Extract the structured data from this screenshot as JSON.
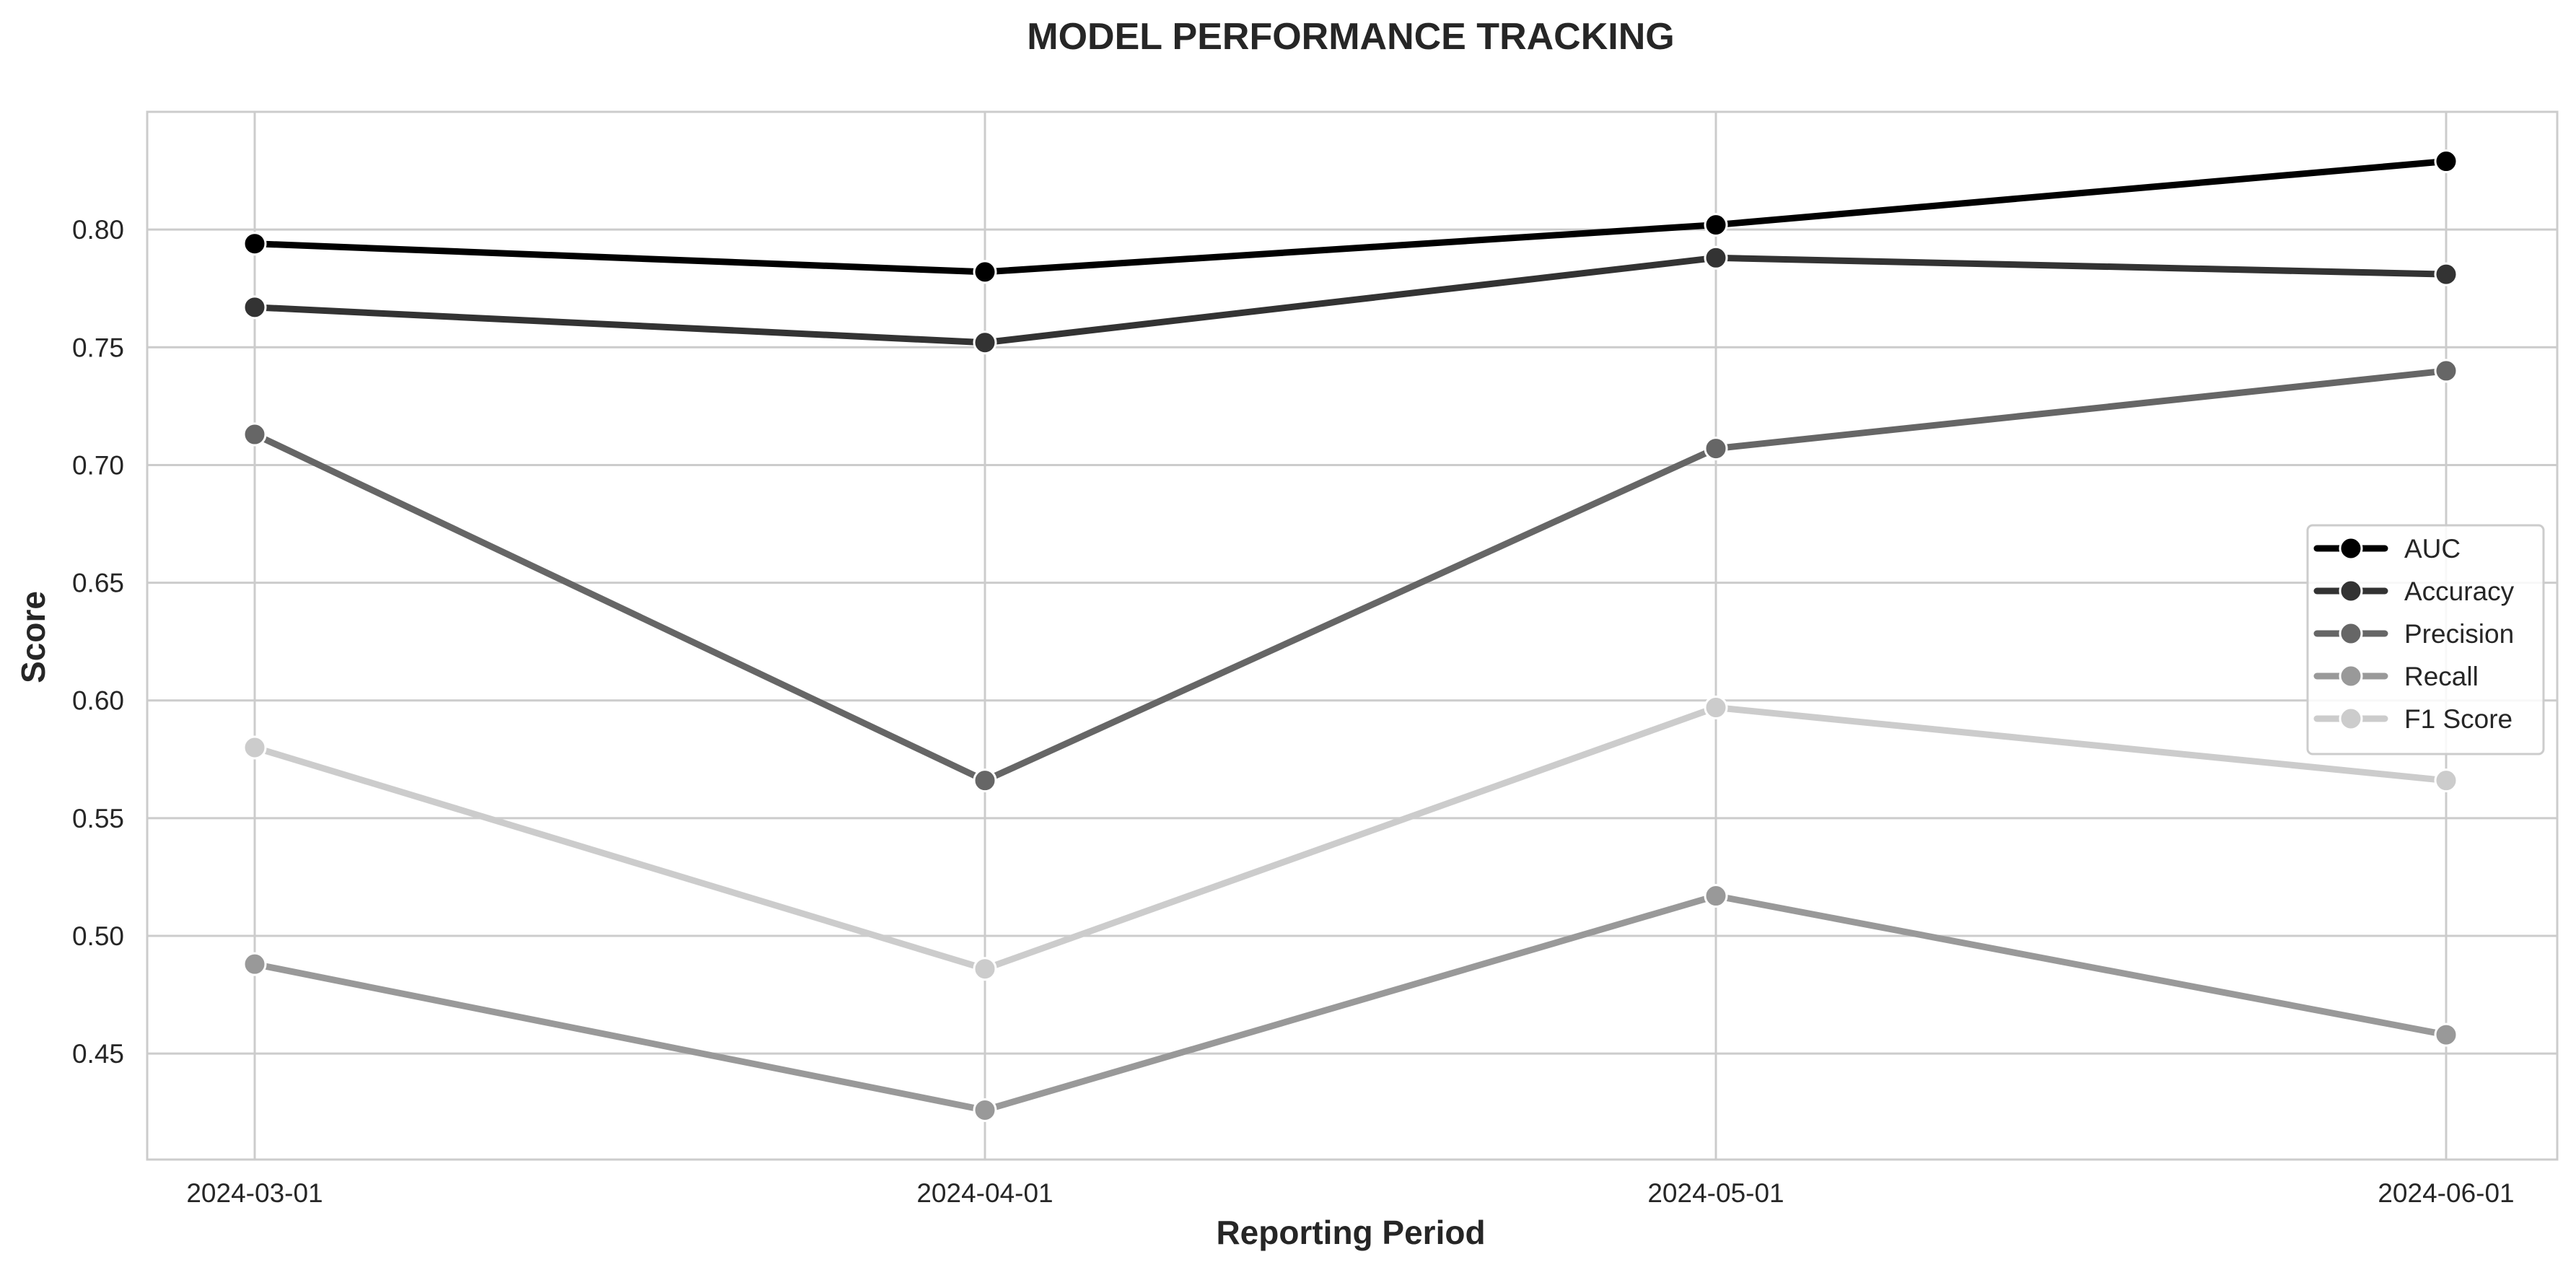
{
  "chart_data": {
    "type": "line",
    "title": "MODEL PERFORMANCE TRACKING",
    "xlabel": "Reporting Period",
    "ylabel": "Score",
    "x": [
      "2024-03-01",
      "2024-04-01",
      "2024-05-01",
      "2024-06-01"
    ],
    "ylim": [
      0.405,
      0.85
    ],
    "yticks": [
      "0.45",
      "0.50",
      "0.55",
      "0.60",
      "0.65",
      "0.70",
      "0.75",
      "0.80"
    ],
    "grid": true,
    "legend_position": "center-right",
    "series": [
      {
        "name": "AUC",
        "color": "#000000",
        "values": [
          0.794,
          0.782,
          0.802,
          0.829
        ]
      },
      {
        "name": "Accuracy",
        "color": "#333333",
        "values": [
          0.767,
          0.752,
          0.788,
          0.781
        ]
      },
      {
        "name": "Precision",
        "color": "#666666",
        "values": [
          0.713,
          0.566,
          0.707,
          0.74
        ]
      },
      {
        "name": "Recall",
        "color": "#999999",
        "values": [
          0.488,
          0.426,
          0.517,
          0.458
        ]
      },
      {
        "name": "F1 Score",
        "color": "#cccccc",
        "values": [
          0.58,
          0.486,
          0.597,
          0.566
        ]
      }
    ]
  }
}
